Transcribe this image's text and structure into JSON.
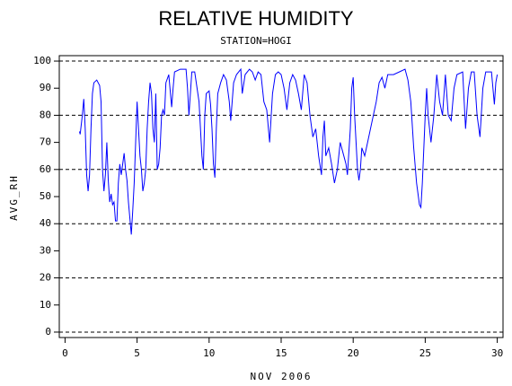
{
  "chart_data": {
    "type": "line",
    "title": "RELATIVE HUMIDITY",
    "subtitle": "STATION=HOGI",
    "ylabel": "AVG_RH",
    "xlabel": "NOV 2006",
    "color": "#0000ff",
    "xlim": [
      -0.4,
      30.4
    ],
    "ylim": [
      -2,
      102
    ],
    "xticks": [
      0,
      5,
      10,
      15,
      20,
      25,
      30
    ],
    "yticks": [
      0,
      10,
      20,
      30,
      40,
      50,
      60,
      70,
      80,
      90,
      100
    ],
    "grid_y": [
      0,
      20,
      40,
      60,
      80,
      100
    ],
    "x": [
      1.0,
      1.05,
      1.2,
      1.3,
      1.4,
      1.5,
      1.6,
      1.7,
      1.8,
      1.9,
      2.0,
      2.2,
      2.4,
      2.5,
      2.6,
      2.7,
      2.8,
      2.9,
      3.0,
      3.1,
      3.2,
      3.3,
      3.4,
      3.5,
      3.6,
      3.7,
      3.8,
      3.9,
      4.0,
      4.1,
      4.2,
      4.3,
      4.4,
      4.5,
      4.6,
      4.7,
      4.8,
      4.9,
      5.0,
      5.1,
      5.2,
      5.3,
      5.4,
      5.5,
      5.6,
      5.7,
      5.8,
      5.9,
      6.0,
      6.1,
      6.2,
      6.3,
      6.4,
      6.5,
      6.6,
      6.7,
      6.8,
      6.9,
      7.0,
      7.2,
      7.4,
      7.5,
      7.6,
      8.0,
      8.4,
      8.5,
      8.6,
      8.7,
      8.8,
      9.0,
      9.3,
      9.5,
      9.6,
      9.7,
      9.8,
      10.0,
      10.1,
      10.2,
      10.3,
      10.4,
      10.5,
      10.6,
      10.8,
      11.0,
      11.2,
      11.4,
      11.5,
      11.7,
      11.9,
      12.2,
      12.3,
      12.5,
      12.8,
      13.0,
      13.2,
      13.4,
      13.6,
      13.8,
      14.0,
      14.2,
      14.4,
      14.6,
      14.8,
      15.0,
      15.2,
      15.4,
      15.6,
      15.8,
      16.0,
      16.2,
      16.4,
      16.6,
      16.8,
      17.0,
      17.2,
      17.4,
      17.6,
      17.8,
      17.9,
      18.0,
      18.1,
      18.3,
      18.5,
      18.7,
      18.9,
      19.0,
      19.1,
      19.3,
      19.5,
      19.6,
      19.8,
      19.9,
      20.0,
      20.1,
      20.3,
      20.4,
      20.5,
      20.6,
      20.8,
      21.0,
      21.2,
      21.4,
      21.6,
      21.8,
      22.0,
      22.2,
      22.4,
      22.8,
      23.2,
      23.6,
      23.8,
      24.0,
      24.2,
      24.4,
      24.6,
      24.7,
      24.8,
      25.0,
      25.1,
      25.2,
      25.4,
      25.6,
      25.8,
      26.0,
      26.2,
      26.4,
      26.6,
      26.8,
      27.0,
      27.2,
      27.6,
      27.8,
      28.0,
      28.2,
      28.4,
      28.6,
      28.8,
      29.0,
      29.2,
      29.6,
      29.8,
      29.9,
      30.0
    ],
    "values": [
      74,
      73,
      80,
      86,
      75,
      58,
      52,
      58,
      75,
      88,
      92,
      93,
      91,
      85,
      60,
      52,
      58,
      70,
      56,
      48,
      51,
      47,
      48,
      41,
      41,
      55,
      62,
      58,
      62,
      66,
      60,
      56,
      48,
      42,
      36,
      45,
      55,
      70,
      85,
      75,
      65,
      60,
      52,
      55,
      60,
      75,
      85,
      92,
      88,
      75,
      70,
      88,
      60,
      62,
      68,
      80,
      82,
      80,
      92,
      95,
      83,
      90,
      96,
      97,
      97,
      90,
      80,
      88,
      96,
      96,
      85,
      65,
      60,
      80,
      88,
      89,
      84,
      75,
      62,
      57,
      75,
      88,
      92,
      95,
      93,
      85,
      78,
      92,
      95,
      97,
      88,
      95,
      97,
      96,
      93,
      96,
      95,
      85,
      82,
      70,
      88,
      95,
      96,
      95,
      90,
      82,
      92,
      95,
      93,
      88,
      82,
      95,
      92,
      80,
      72,
      75,
      65,
      58,
      72,
      78,
      65,
      68,
      62,
      55,
      60,
      65,
      70,
      66,
      62,
      58,
      75,
      90,
      94,
      80,
      60,
      56,
      60,
      68,
      65,
      70,
      75,
      80,
      85,
      92,
      94,
      90,
      95,
      95,
      96,
      97,
      93,
      85,
      68,
      55,
      47,
      46,
      55,
      80,
      90,
      80,
      70,
      80,
      95,
      85,
      80,
      95,
      80,
      78,
      90,
      95,
      96,
      75,
      90,
      96,
      96,
      80,
      72,
      90,
      96,
      96,
      84,
      92,
      95
    ]
  }
}
